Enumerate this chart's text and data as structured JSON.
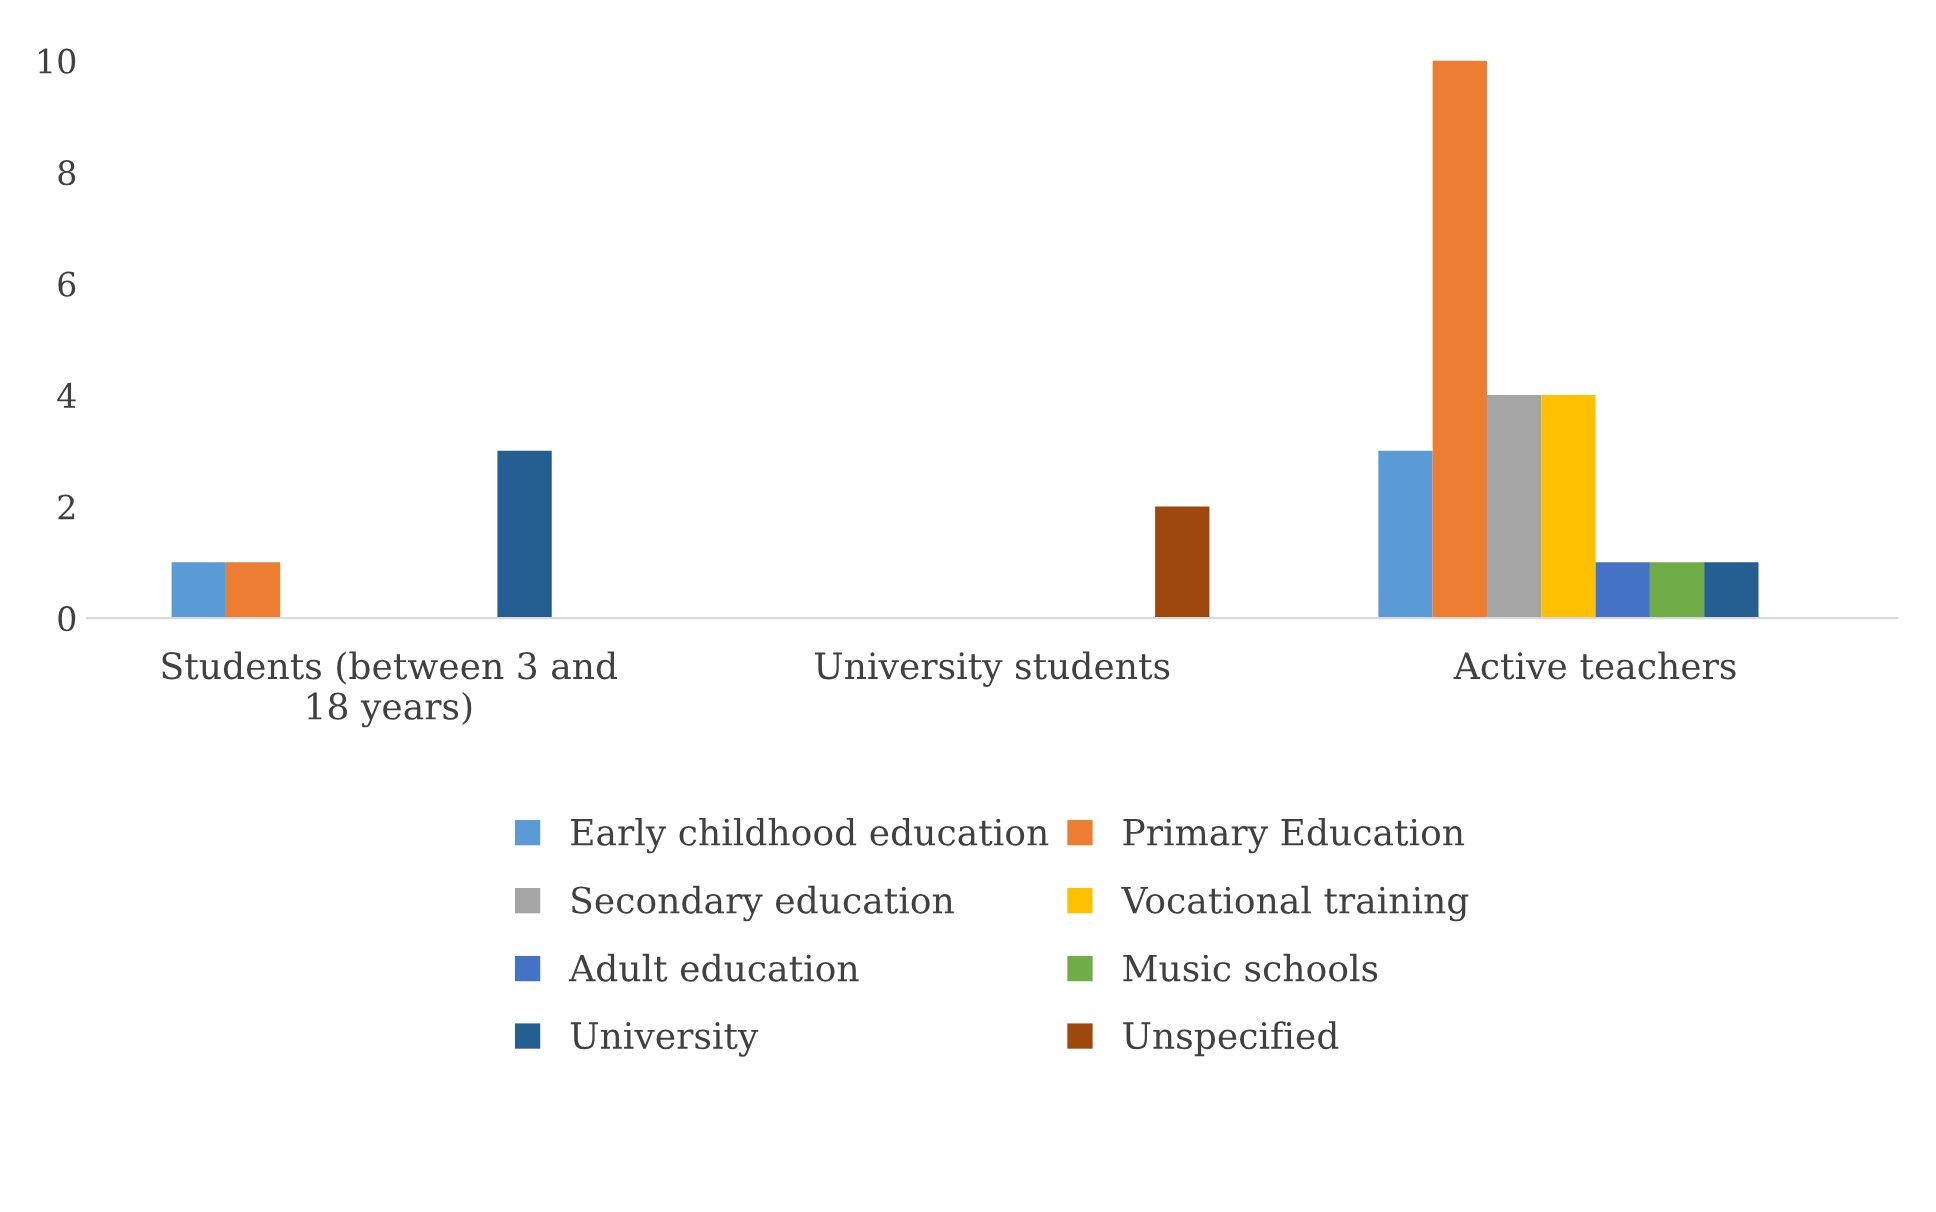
{
  "chart_data": {
    "type": "bar",
    "categories": [
      "Students (between 3 and\n18 years)",
      "University students",
      "Active teachers"
    ],
    "series": [
      {
        "name": "Early childhood education",
        "color": "#5b9bd5",
        "values": [
          1,
          0,
          3
        ]
      },
      {
        "name": "Primary Education",
        "color": "#ed7d31",
        "values": [
          1,
          0,
          10
        ]
      },
      {
        "name": "Secondary education",
        "color": "#a5a5a5",
        "values": [
          0,
          0,
          4
        ]
      },
      {
        "name": "Vocational training",
        "color": "#ffc000",
        "values": [
          0,
          0,
          4
        ]
      },
      {
        "name": "Adult education",
        "color": "#4472c4",
        "values": [
          0,
          0,
          1
        ]
      },
      {
        "name": "Music schools",
        "color": "#70ad47",
        "values": [
          0,
          0,
          1
        ]
      },
      {
        "name": "University",
        "color": "#255e91",
        "values": [
          3,
          0,
          1
        ]
      },
      {
        "name": "Unspecified",
        "color": "#9e480e",
        "values": [
          0,
          2,
          0
        ]
      }
    ],
    "ylim": [
      0,
      10
    ],
    "yticks": [
      0,
      2,
      4,
      6,
      8,
      10
    ],
    "grid": false,
    "legend": "bottom"
  }
}
